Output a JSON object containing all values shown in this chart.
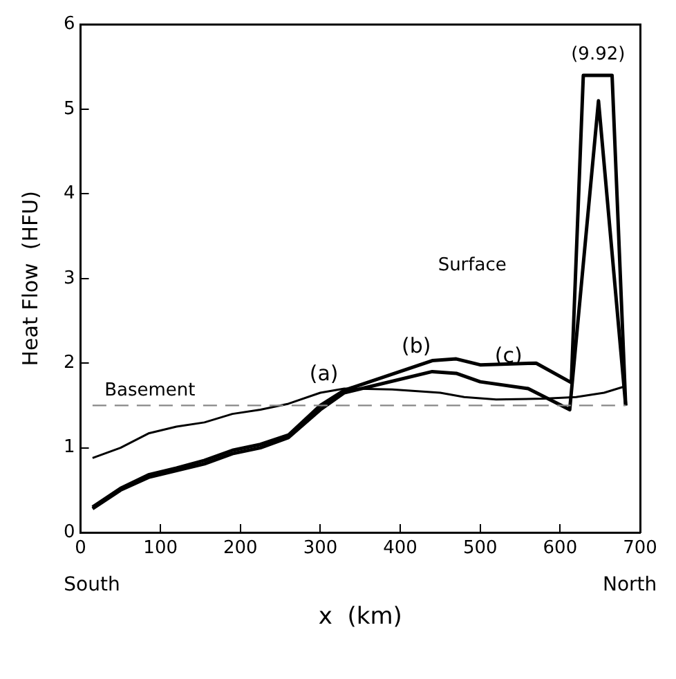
{
  "chart_data": {
    "type": "line",
    "xlabel": "x  (km)",
    "ylabel": "Heat Flow  (HFU)",
    "xlim": [
      0,
      700
    ],
    "xticks": [
      0,
      100,
      200,
      300,
      400,
      500,
      600,
      700
    ],
    "ylim": [
      0,
      6
    ],
    "yticks": [
      0,
      1,
      2,
      3,
      4,
      5,
      6
    ],
    "grid": false,
    "legend": false,
    "marker": "none",
    "line_style": "solid",
    "series": [
      {
        "color": "#000000",
        "x": [
          15,
          50,
          85,
          120,
          155,
          190,
          225,
          260,
          300,
          330,
          390,
          450,
          480,
          520,
          580,
          620,
          655,
          679
        ],
        "values": [
          0.88,
          1.0,
          1.17,
          1.25,
          1.3,
          1.4,
          1.45,
          1.52,
          1.65,
          1.7,
          1.69,
          1.65,
          1.6,
          1.57,
          1.58,
          1.6,
          1.65,
          1.72
        ]
      },
      {
        "color": "#000000",
        "x": [
          15,
          50,
          85,
          120,
          155,
          190,
          225,
          260,
          300,
          330,
          440,
          470,
          500,
          560,
          612,
          648,
          682
        ],
        "values": [
          0.28,
          0.5,
          0.65,
          0.73,
          0.81,
          0.93,
          1.0,
          1.12,
          1.45,
          1.65,
          1.9,
          1.88,
          1.78,
          1.7,
          1.45,
          5.1,
          1.5
        ]
      },
      {
        "color": "#000000",
        "x": [
          15,
          50,
          85,
          120,
          155,
          190,
          225,
          260,
          300,
          330,
          440,
          470,
          500,
          570,
          614,
          629,
          665,
          682
        ],
        "values": [
          0.3,
          0.52,
          0.68,
          0.76,
          0.85,
          0.97,
          1.04,
          1.15,
          1.5,
          1.68,
          2.03,
          2.05,
          1.98,
          2.0,
          1.77,
          5.4,
          5.4,
          1.5
        ]
      }
    ],
    "ref_lines": [
      {
        "axis": "y",
        "value": 1.5,
        "label": "Basement",
        "color": "#888888",
        "line_style": "dashed"
      }
    ],
    "annotations": [
      "South",
      "North",
      "(9.92)",
      "Surface",
      "(a)",
      "(b)",
      "(c)"
    ]
  }
}
